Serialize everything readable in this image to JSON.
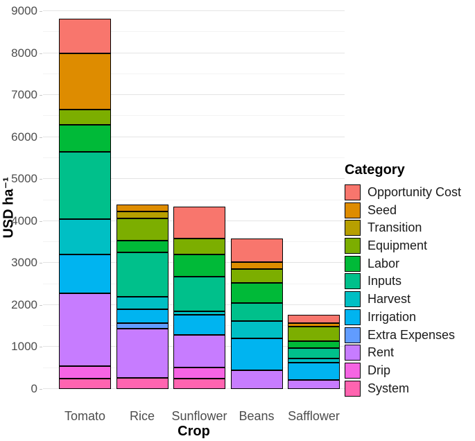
{
  "axes": {
    "x_title": "Crop",
    "y_title": "USD ha⁻¹",
    "y_ticks": [
      0,
      1000,
      2000,
      3000,
      4000,
      5000,
      6000,
      7000,
      8000,
      9000
    ],
    "y_minor": [
      500,
      1500,
      2500,
      3500,
      4500,
      5500,
      6500,
      7500,
      8500
    ]
  },
  "legend": {
    "title": "Category",
    "items": [
      "Opportunity Cost",
      "Seed",
      "Transition",
      "Equipment",
      "Labor",
      "Inputs",
      "Harvest",
      "Irrigation",
      "Extra Expenses",
      "Rent",
      "Drip",
      "System"
    ]
  },
  "chart_data": {
    "type": "bar",
    "stacked": true,
    "title": "",
    "xlabel": "Crop",
    "ylabel": "USD ha⁻¹",
    "ylim": [
      0,
      9000
    ],
    "grid": true,
    "legend_position": "right",
    "legend_title": "Category",
    "categories": [
      "Tomato",
      "Rice",
      "Sunflower",
      "Beans",
      "Safflower"
    ],
    "series": [
      {
        "name": "Opportunity Cost",
        "color": "#F8766D",
        "values": [
          820,
          0,
          770,
          550,
          190
        ]
      },
      {
        "name": "Seed",
        "color": "#DE8C00",
        "values": [
          1350,
          170,
          0,
          180,
          80
        ]
      },
      {
        "name": "Transition",
        "color": "#B79F00",
        "values": [
          0,
          160,
          0,
          0,
          0
        ]
      },
      {
        "name": "Equipment",
        "color": "#7CAE00",
        "values": [
          350,
          540,
          380,
          330,
          350
        ]
      },
      {
        "name": "Labor",
        "color": "#00BA38",
        "values": [
          650,
          270,
          520,
          470,
          160
        ]
      },
      {
        "name": "Inputs",
        "color": "#00C08B",
        "values": [
          1600,
          1060,
          830,
          430,
          250
        ]
      },
      {
        "name": "Harvest",
        "color": "#00BFC4",
        "values": [
          850,
          300,
          90,
          410,
          100
        ]
      },
      {
        "name": "Irrigation",
        "color": "#00B4F0",
        "values": [
          920,
          330,
          470,
          760,
          410
        ]
      },
      {
        "name": "Extra Expenses",
        "color": "#619CFF",
        "values": [
          0,
          140,
          0,
          0,
          0
        ]
      },
      {
        "name": "Rent",
        "color": "#C77CFF",
        "values": [
          1740,
          1170,
          770,
          450,
          220
        ]
      },
      {
        "name": "Drip",
        "color": "#F564E3",
        "values": [
          290,
          0,
          270,
          0,
          0
        ]
      },
      {
        "name": "System",
        "color": "#FF64B0",
        "values": [
          250,
          260,
          250,
          0,
          0
        ]
      }
    ],
    "totals": [
      8820,
      4400,
      4350,
      3580,
      1760
    ]
  }
}
